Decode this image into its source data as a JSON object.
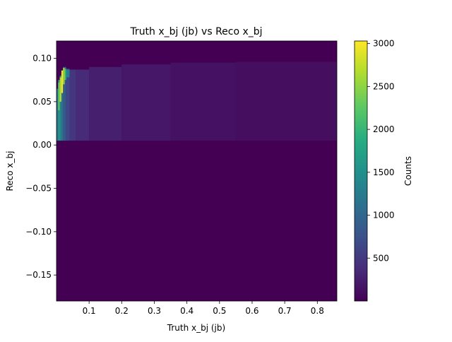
{
  "chart_data": {
    "type": "heatmap",
    "title": "Truth x_bj (jb) vs Reco x_bj",
    "xlabel": "Truth x_bj (jb)",
    "ylabel": "Reco x_bj",
    "xlim": [
      0.0,
      0.86
    ],
    "ylim": [
      -0.18,
      0.12
    ],
    "x_ticks": [
      0.1,
      0.2,
      0.3,
      0.4,
      0.5,
      0.6,
      0.7,
      0.8
    ],
    "x_tick_labels": [
      "0.1",
      "0.2",
      "0.3",
      "0.4",
      "0.5",
      "0.6",
      "0.7",
      "0.8"
    ],
    "y_ticks": [
      -0.15,
      -0.1,
      -0.05,
      0.0,
      0.05,
      0.1
    ],
    "y_tick_labels": [
      "−0.15",
      "−0.10",
      "−0.05",
      "0.00",
      "0.05",
      "0.10"
    ],
    "colormap": "viridis",
    "colorbar": {
      "label": "Counts",
      "range": [
        0,
        3030
      ],
      "ticks": [
        500,
        1000,
        1500,
        2000,
        2500,
        3000
      ],
      "tick_labels": [
        "500",
        "1000",
        "1500",
        "2000",
        "2500",
        "3000"
      ]
    },
    "cells": [
      {
        "x": [
          0.0,
          0.005
        ],
        "y": [
          0.005,
          0.065
        ],
        "count": 1100
      },
      {
        "x": [
          0.005,
          0.01
        ],
        "y": [
          0.005,
          0.075
        ],
        "count": 1700
      },
      {
        "x": [
          0.005,
          0.01
        ],
        "y": [
          0.04,
          0.072
        ],
        "count": 2300
      },
      {
        "x": [
          0.01,
          0.015
        ],
        "y": [
          0.005,
          0.08
        ],
        "count": 1400
      },
      {
        "x": [
          0.01,
          0.015
        ],
        "y": [
          0.05,
          0.078
        ],
        "count": 2700
      },
      {
        "x": [
          0.015,
          0.02
        ],
        "y": [
          0.005,
          0.085
        ],
        "count": 1150
      },
      {
        "x": [
          0.015,
          0.02
        ],
        "y": [
          0.06,
          0.086
        ],
        "count": 3000
      },
      {
        "x": [
          0.02,
          0.025
        ],
        "y": [
          0.005,
          0.09
        ],
        "count": 950
      },
      {
        "x": [
          0.02,
          0.025
        ],
        "y": [
          0.07,
          0.089
        ],
        "count": 2600
      },
      {
        "x": [
          0.025,
          0.03
        ],
        "y": [
          0.005,
          0.09
        ],
        "count": 800
      },
      {
        "x": [
          0.025,
          0.03
        ],
        "y": [
          0.075,
          0.088
        ],
        "count": 2000
      },
      {
        "x": [
          0.03,
          0.04
        ],
        "y": [
          0.005,
          0.088
        ],
        "count": 620
      },
      {
        "x": [
          0.03,
          0.04
        ],
        "y": [
          0.078,
          0.087
        ],
        "count": 1300
      },
      {
        "x": [
          0.04,
          0.06
        ],
        "y": [
          0.005,
          0.087
        ],
        "count": 480
      },
      {
        "x": [
          0.06,
          0.1
        ],
        "y": [
          0.005,
          0.087
        ],
        "count": 360
      },
      {
        "x": [
          0.1,
          0.2
        ],
        "y": [
          0.005,
          0.09
        ],
        "count": 260
      },
      {
        "x": [
          0.2,
          0.35
        ],
        "y": [
          0.005,
          0.093
        ],
        "count": 190
      },
      {
        "x": [
          0.35,
          0.55
        ],
        "y": [
          0.005,
          0.095
        ],
        "count": 140
      },
      {
        "x": [
          0.55,
          0.86
        ],
        "y": [
          0.005,
          0.096
        ],
        "count": 110
      }
    ]
  }
}
